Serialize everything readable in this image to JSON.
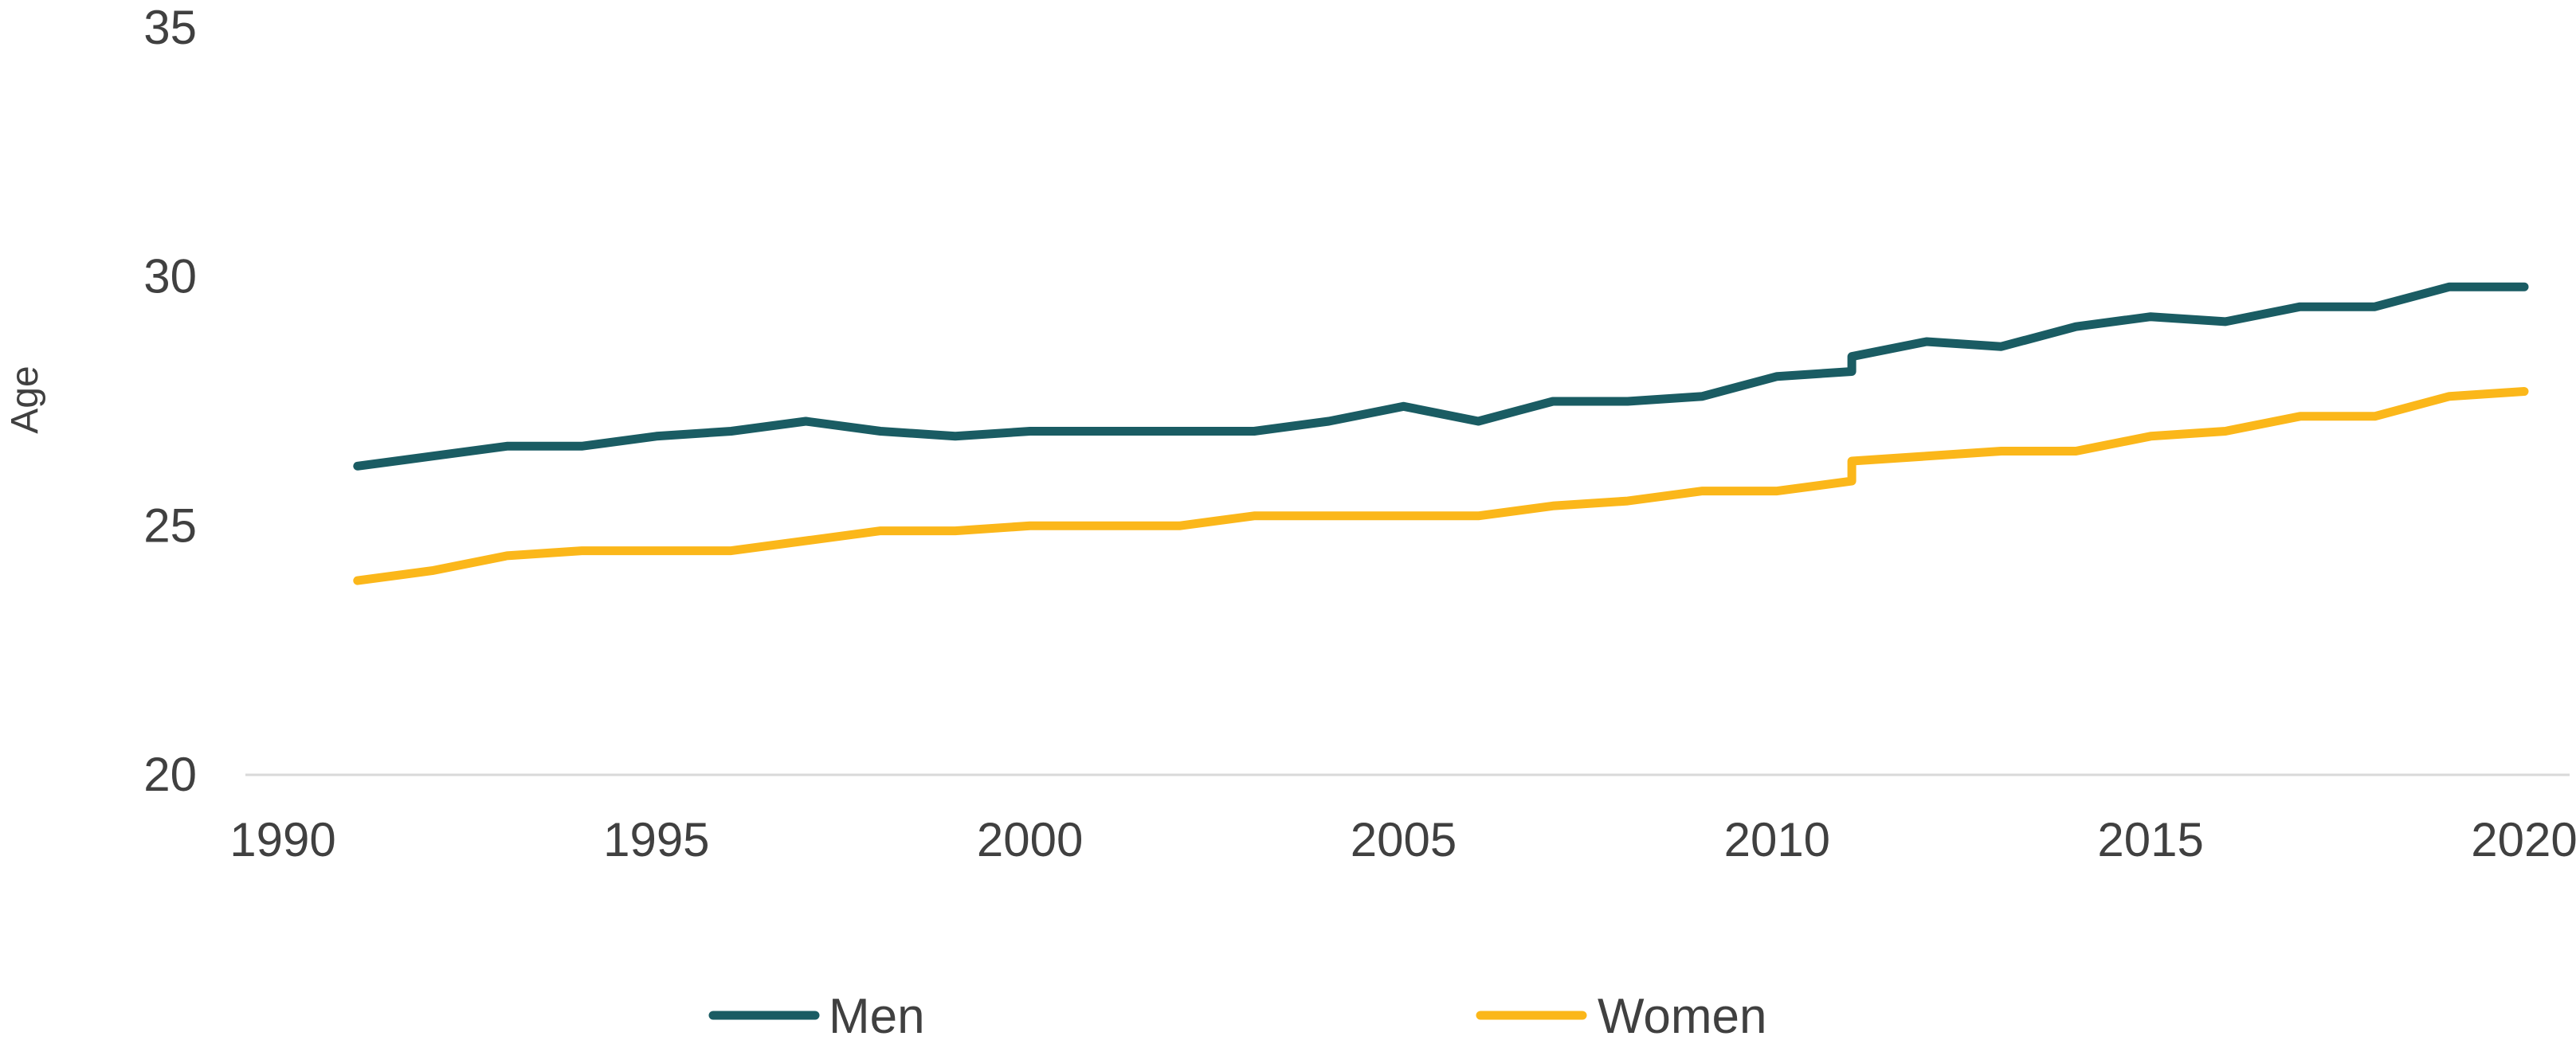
{
  "chart_data": {
    "type": "line",
    "title": "",
    "xlabel": "",
    "ylabel": "Age",
    "xlim": [
      1990,
      2020
    ],
    "ylim": [
      20,
      35
    ],
    "x_ticks": [
      1990,
      1995,
      2000,
      2005,
      2010,
      2015,
      2020
    ],
    "y_ticks": [
      20,
      25,
      30,
      35
    ],
    "grid": false,
    "legend_position": "bottom",
    "x": [
      1991,
      1992,
      1993,
      1994,
      1995,
      1996,
      1997,
      1998,
      1999,
      2000,
      2001,
      2002,
      2003,
      2004,
      2005,
      2006,
      2007,
      2008,
      2009,
      2010,
      2011,
      2011,
      2012,
      2013,
      2014,
      2015,
      2016,
      2017,
      2018,
      2019,
      2020
    ],
    "series": [
      {
        "name": "Men",
        "color": "#1a5c63",
        "values": [
          26.2,
          26.4,
          26.6,
          26.6,
          26.8,
          26.9,
          27.1,
          26.9,
          26.8,
          26.9,
          26.9,
          26.9,
          26.9,
          27.1,
          27.4,
          27.1,
          27.5,
          27.5,
          27.6,
          28.0,
          28.1,
          28.4,
          28.7,
          28.6,
          29.0,
          29.2,
          29.1,
          29.4,
          29.4,
          29.8,
          29.8
        ]
      },
      {
        "name": "Women",
        "color": "#fbb71a",
        "values": [
          23.9,
          24.1,
          24.4,
          24.5,
          24.5,
          24.5,
          24.7,
          24.9,
          24.9,
          25.0,
          25.0,
          25.0,
          25.2,
          25.2,
          25.2,
          25.2,
          25.4,
          25.5,
          25.7,
          25.7,
          25.9,
          26.3,
          26.4,
          26.5,
          26.5,
          26.8,
          26.9,
          27.2,
          27.2,
          27.6,
          27.7
        ]
      }
    ]
  }
}
